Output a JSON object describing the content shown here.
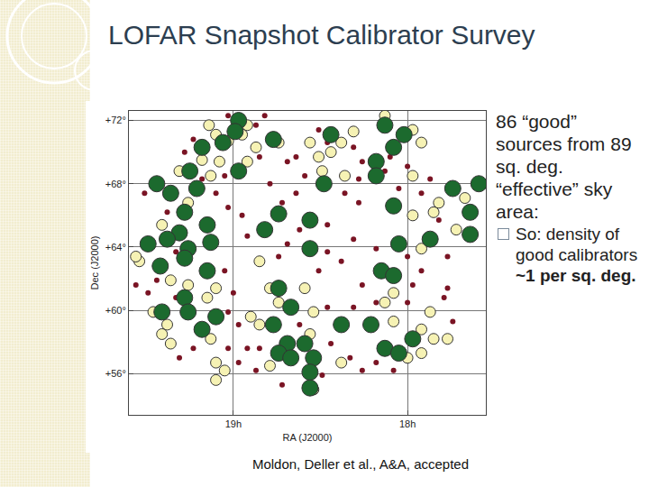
{
  "slide": {
    "title": "LOFAR Snapshot Calibrator Survey",
    "text": "86 “good” sources from 89 sq. deg. “effective” sky area:",
    "bullet": "So: density of good calibrators",
    "bullet_bold": "~1 per sq. deg.",
    "citation": "Moldon, Deller et al., A&A, accepted"
  },
  "chart_data": {
    "type": "scatter",
    "x_label": "RA (J2000)",
    "y_label": "Dec (J2000)",
    "xlim": [
      19.6,
      17.55
    ],
    "xticks": [
      {
        "value": 19,
        "label": "19h"
      },
      {
        "value": 18,
        "label": "18h"
      }
    ],
    "ylim": [
      53.4,
      72.6
    ],
    "yticks": [
      {
        "value": 56,
        "label": "+56°"
      },
      {
        "value": 60,
        "label": "+60°"
      },
      {
        "value": 64,
        "label": "+64°"
      },
      {
        "value": 68,
        "label": "+68°"
      },
      {
        "value": 72,
        "label": "+72°"
      }
    ],
    "grid": true,
    "series": [
      {
        "color": "#7a1424",
        "marker": "dot",
        "x": [
          19.03,
          18.87,
          18.82,
          19.23,
          19.28,
          18.85,
          19.05,
          19.18,
          19.51,
          19.38,
          19.1,
          19.03,
          18.79,
          18.69,
          18.64,
          18.59,
          18.64,
          18.72,
          18.62,
          18.69,
          18.74,
          18.92,
          18.51,
          18.46,
          18.31,
          18.26,
          18.28,
          18.36,
          18.28,
          18.13,
          18.1,
          18.0,
          18.05,
          17.92,
          17.87,
          17.82,
          17.77,
          17.92,
          18.0,
          18.18,
          18.31,
          18.38,
          18.46,
          18.51,
          19.56,
          19.44,
          19.49,
          19.33,
          19.05,
          19.0,
          19.03,
          18.97,
          19.23,
          19.31,
          19.03,
          18.97,
          18.92,
          18.85,
          18.87,
          18.72,
          18.62,
          18.46,
          18.44,
          18.49,
          18.31,
          18.26,
          18.33,
          18.26,
          18.18,
          18.0,
          17.97,
          17.79,
          17.74,
          17.77,
          18.18,
          18.08,
          19.41,
          19.33,
          18.95,
          18.46
        ],
        "y": [
          72.3,
          71.7,
          72.3,
          70.8,
          70.0,
          69.7,
          68.5,
          68.3,
          67.4,
          66.2,
          67.4,
          66.5,
          68.0,
          69.4,
          69.7,
          68.5,
          67.4,
          66.8,
          65.1,
          64.2,
          63.4,
          64.7,
          71.4,
          70.6,
          70.3,
          69.4,
          68.3,
          67.4,
          66.8,
          68.8,
          69.7,
          69.1,
          67.7,
          67.4,
          68.3,
          65.7,
          63.4,
          62.5,
          63.4,
          63.9,
          64.5,
          63.1,
          63.7,
          62.5,
          61.6,
          61.9,
          61.1,
          60.8,
          62.5,
          61.1,
          59.9,
          59.1,
          57.6,
          57.0,
          57.6,
          56.7,
          57.6,
          57.6,
          56.2,
          55.3,
          59.1,
          60.2,
          57.9,
          55.9,
          60.2,
          61.6,
          57.0,
          56.2,
          60.5,
          60.5,
          61.6,
          60.8,
          59.3,
          61.4,
          56.7,
          56.2,
          63.1,
          63.7,
          66.0,
          65.4
        ]
      },
      {
        "color": "#f6f2b4",
        "marker": "circle",
        "x": [
          19.14,
          19.1,
          19.03,
          18.92,
          18.87,
          18.92,
          19.08,
          19.13,
          19.18,
          19.31,
          19.41,
          19.26,
          18.95,
          18.74,
          18.56,
          18.51,
          18.44,
          18.38,
          18.31,
          18.13,
          17.97,
          17.92,
          18.36,
          18.49,
          17.97,
          17.97,
          17.85,
          17.82,
          17.67,
          17.72,
          17.92,
          19.54,
          19.36,
          19.26,
          19.1,
          19.46,
          19.38,
          19.41,
          19.36,
          19.13,
          18.79,
          18.74,
          18.59,
          18.54,
          18.9,
          18.85,
          18.08,
          18.13,
          18.08,
          17.87,
          17.92,
          17.85,
          17.77,
          17.92,
          18.0,
          18.79,
          18.54,
          18.38,
          18.56,
          19.1,
          19.05,
          19.1,
          19.15,
          18.85,
          19.56
        ],
        "y": [
          71.7,
          71.1,
          70.7,
          71.7,
          70.3,
          69.4,
          69.4,
          68.5,
          69.5,
          68.8,
          65.4,
          66.8,
          71.1,
          70.6,
          70.6,
          69.7,
          70.0,
          70.6,
          71.3,
          72.3,
          71.4,
          70.6,
          68.5,
          68.8,
          68.5,
          66.0,
          66.2,
          66.8,
          67.1,
          65.1,
          63.9,
          63.1,
          61.9,
          61.6,
          61.4,
          59.9,
          59.1,
          58.5,
          57.9,
          58.2,
          61.4,
          60.5,
          61.4,
          59.9,
          59.6,
          59.1,
          61.1,
          60.5,
          59.3,
          59.9,
          58.8,
          58.2,
          58.2,
          57.3,
          57.0,
          56.5,
          55.0,
          56.7,
          58.5,
          56.7,
          56.2,
          55.6,
          60.8,
          63.1,
          63.4
        ]
      },
      {
        "color": "#1c6a2e",
        "marker": "big_circle",
        "x": [
          18.97,
          18.99,
          19.06,
          19.18,
          19.25,
          19.36,
          19.44,
          19.21,
          18.97,
          18.77,
          18.44,
          18.13,
          18.02,
          18.08,
          18.18,
          18.18,
          18.48,
          18.74,
          18.82,
          19.28,
          19.31,
          19.15,
          19.13,
          19.49,
          19.38,
          19.42,
          19.26,
          18.56,
          18.56,
          18.08,
          18.05,
          17.64,
          17.59,
          17.74,
          17.64,
          17.87,
          19.15,
          19.28,
          19.26,
          19.41,
          19.18,
          19.1,
          18.74,
          18.67,
          18.77,
          18.69,
          18.74,
          18.67,
          18.59,
          18.54,
          18.56,
          18.38,
          18.21,
          18.13,
          18.05,
          17.97,
          18.56,
          18.15,
          18.08,
          19.28
        ],
        "y": [
          72.0,
          71.3,
          70.6,
          70.3,
          68.8,
          67.4,
          68.0,
          67.7,
          68.8,
          70.8,
          71.1,
          71.7,
          71.1,
          70.3,
          69.4,
          68.5,
          68.0,
          66.1,
          65.1,
          66.2,
          64.9,
          65.4,
          64.3,
          64.2,
          64.5,
          62.8,
          63.9,
          65.7,
          63.9,
          66.6,
          64.2,
          66.2,
          68.0,
          67.7,
          64.8,
          64.5,
          62.5,
          60.8,
          59.9,
          59.9,
          58.8,
          59.6,
          61.4,
          60.2,
          59.1,
          57.9,
          57.3,
          57.0,
          57.9,
          57.0,
          56.1,
          59.1,
          59.1,
          57.6,
          57.3,
          58.2,
          55.1,
          62.5,
          62.2,
          63.3
        ]
      }
    ]
  }
}
